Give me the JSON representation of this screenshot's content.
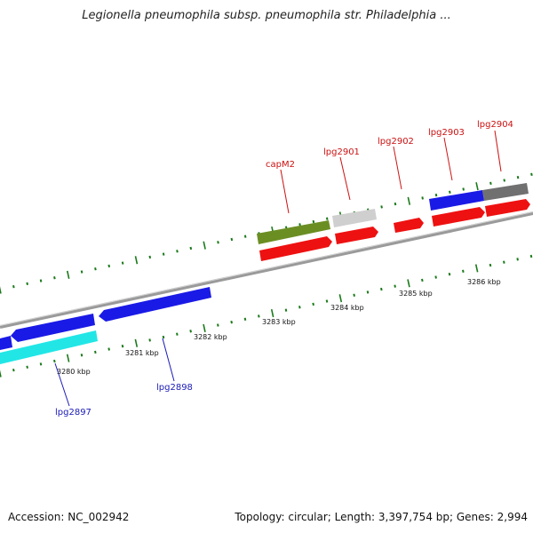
{
  "title": "Legionella pneumophila subsp. pneumophila str. Philadelphia ...",
  "footer": {
    "accession": "Accession: NC_002942",
    "summary": "Topology: circular; Length: 3,397,754 bp; Genes: 2,994"
  },
  "colors": {
    "background": "#ffffff",
    "backbone": "#8a8a8a",
    "forward_cds": "#1a1ae6",
    "reverse_cds": "#ee1111",
    "rna_gene": "#6b8e23",
    "pseudo_gene": "#c8c8c8",
    "dark_gene": "#707070",
    "highlight_gene": "#22e6e6",
    "tick_marks": "#1a7a1a",
    "forward_label": "#1a1ab8",
    "reverse_label": "#cc1111"
  },
  "ruler_labels": [
    "3280 kbp",
    "3281 kbp",
    "3282 kbp",
    "3283 kbp",
    "3284 kbp",
    "3285 kbp",
    "3286 kbp"
  ],
  "gene_labels": {
    "capM2": "capM2",
    "lpg2901": "lpg2901",
    "lpg2902": "lpg2902",
    "lpg2903": "lpg2903",
    "lpg2904": "lpg2904",
    "lpg2897": "lpg2897",
    "lpg2898": "lpg2898"
  }
}
